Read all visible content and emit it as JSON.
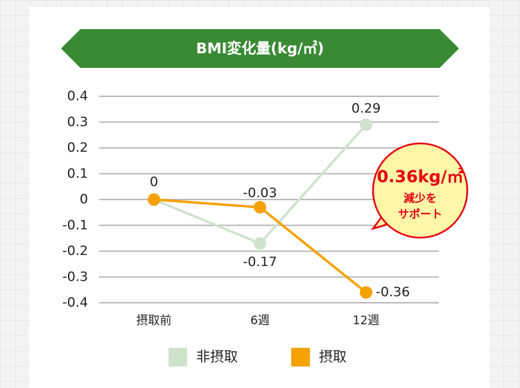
{
  "chart_data": {
    "type": "line",
    "title": "BMI変化量(kg/㎡)",
    "categories": [
      "摂取前",
      "6週",
      "12週"
    ],
    "series": [
      {
        "name": "非摂取",
        "color": "#cfe3cc",
        "values": [
          0,
          -0.17,
          0.29
        ]
      },
      {
        "name": "摂取",
        "color": "#f5a100",
        "values": [
          0,
          -0.03,
          -0.36
        ]
      }
    ],
    "ylim": [
      -0.4,
      0.4
    ],
    "yticks": [
      0.4,
      0.3,
      0.2,
      0.1,
      0,
      -0.1,
      -0.2,
      -0.3,
      -0.4
    ],
    "grid": true,
    "annotation": {
      "highlight": "0.36kg/㎡",
      "lines": [
        "減少を",
        "サポート"
      ]
    }
  }
}
